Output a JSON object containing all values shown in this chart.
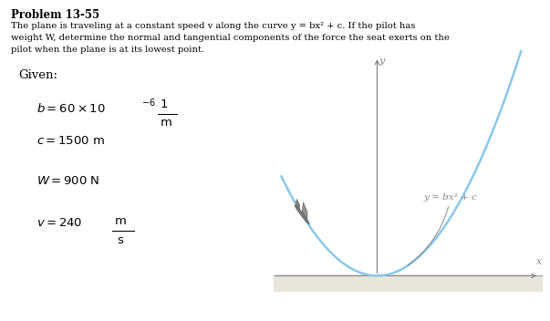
{
  "title": "Problem 13-55",
  "desc_lines": [
    "The plane is traveling at a constant speed v along the curve y = bx² + c. If the pilot has",
    "weight W, determine the normal and tangential components of the force the seat exerts on the",
    "pilot when the plane is at its lowest point."
  ],
  "given_label": "Given:",
  "b_main": "b = 60 × 10",
  "b_exp": "−6",
  "b_num": "1",
  "b_den": "m",
  "c_line": "c = 1500 m",
  "W_line": "W = 900 N",
  "v_main": "v = 240",
  "v_num": "m",
  "v_den": "s",
  "curve_label": "y = bx² + c",
  "x_label": "x",
  "y_label": "y",
  "bg_color": "#ffffff",
  "curve_color": "#8ac8e8",
  "axis_color": "#888888",
  "text_color": "#000000",
  "label_color": "#888888",
  "ground_color": "#e8e6dc",
  "ground_line_color": "#999999"
}
